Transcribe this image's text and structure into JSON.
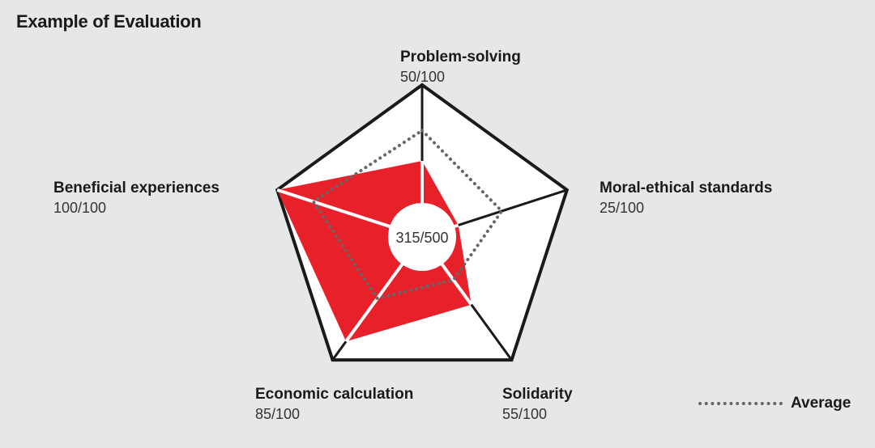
{
  "title": "Example of Evaluation",
  "chart_data": {
    "type": "radar",
    "max": 100,
    "total_label": "315/500",
    "axes": [
      {
        "name": "Problem-solving",
        "score_text": "50/100",
        "value": 50,
        "average": 70
      },
      {
        "name": "Moral-ethical standards",
        "score_text": "25/100",
        "value": 25,
        "average": 55
      },
      {
        "name": "Solidarity",
        "score_text": "55/100",
        "value": 55,
        "average": 35
      },
      {
        "name": "Economic calculation",
        "score_text": "85/100",
        "value": 85,
        "average": 50
      },
      {
        "name": "Beneficial experiences",
        "score_text": "100/100",
        "value": 100,
        "average": 75
      }
    ],
    "legend": {
      "average_label": "Average"
    },
    "colors": {
      "fill": "#e8202a",
      "outline": "#1a1a1a",
      "inner": "#ffffff",
      "average": "#666666"
    }
  }
}
